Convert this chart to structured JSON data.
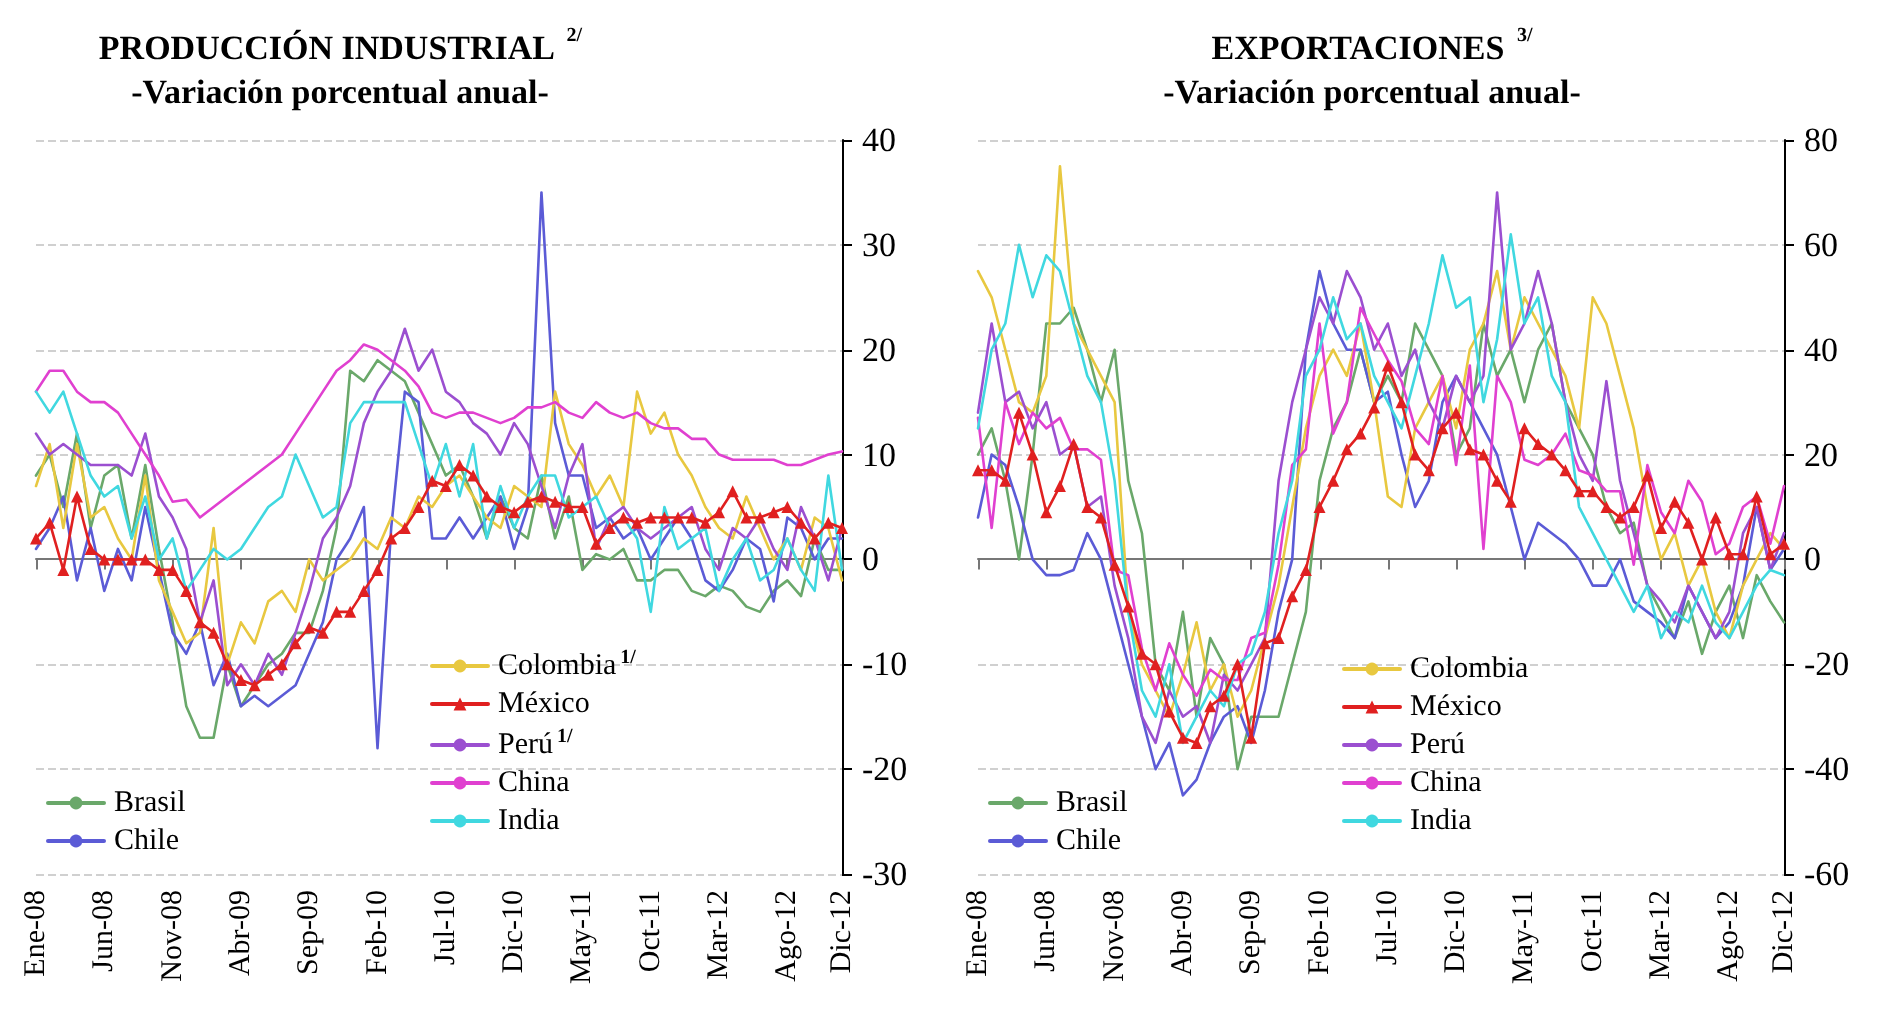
{
  "chart_data": [
    {
      "type": "line",
      "title": "PRODUCCIÓN INDUSTRIAL $^{2/}$",
      "subtitle": "-Variación porcentual anual-",
      "categories": [
        "Ene-08",
        null,
        null,
        null,
        null,
        "Jun-08",
        null,
        null,
        null,
        null,
        "Nov-08",
        null,
        null,
        null,
        null,
        "Abr-09",
        null,
        null,
        null,
        null,
        "Sep-09",
        null,
        null,
        null,
        null,
        "Feb-10",
        null,
        null,
        null,
        null,
        "Jul-10",
        null,
        null,
        null,
        null,
        "Dic-10",
        null,
        null,
        null,
        null,
        "May-11",
        null,
        null,
        null,
        null,
        "Oct-11",
        null,
        null,
        null,
        null,
        "Mar-12",
        null,
        null,
        null,
        null,
        "Ago-12",
        null,
        null,
        null,
        "Dic-12"
      ],
      "ylim": [
        -30,
        40
      ],
      "yticks": [
        -30,
        -20,
        -10,
        0,
        10,
        20,
        30,
        40
      ],
      "grid": "y",
      "legend": "bottom",
      "marker": "none",
      "line_style": "solid",
      "series": [
        {
          "name": "Brasil",
          "color": "#6aa86a",
          "values": [
            8,
            10,
            5,
            12,
            3,
            8,
            9,
            2,
            9,
            1,
            -6,
            -14,
            -17,
            -17,
            -10,
            -14,
            -12,
            -10,
            -9,
            -7,
            -7,
            -3,
            3,
            18,
            17,
            19,
            18,
            17,
            14,
            11,
            8,
            9,
            6,
            2,
            6,
            3,
            2,
            8,
            2,
            6,
            -1,
            0.5,
            0,
            1,
            -2,
            -2,
            -1,
            -1,
            -3,
            -3.5,
            -2.5,
            -3,
            -4.5,
            -5,
            -3,
            -2,
            -3.5,
            2,
            -1,
            -1
          ]
        },
        {
          "name": "Chile",
          "color": "#5b5bd6",
          "values": [
            1,
            3,
            6,
            -2,
            3,
            -3,
            1,
            -2,
            5,
            -1,
            -7,
            -9,
            -6,
            -12,
            -9,
            -14,
            -13,
            -14,
            -13,
            -12,
            -9,
            -6,
            0,
            2,
            5,
            -18,
            3,
            16,
            15,
            2,
            2,
            4,
            2,
            4,
            6,
            1,
            5,
            35,
            13,
            8,
            8,
            3,
            4,
            2,
            3,
            0,
            2,
            4,
            2,
            -2,
            -3,
            -1,
            2,
            1,
            -4,
            4,
            3,
            0,
            2,
            2
          ]
        },
        {
          "name": "Colombia$^{1/}$",
          "color": "#e8c840",
          "values": [
            7,
            11,
            3,
            11,
            4,
            5,
            2,
            0,
            8,
            -2,
            -5,
            -8,
            -7,
            3,
            -10,
            -6,
            -8,
            -4,
            -3,
            -5,
            0,
            -2,
            -1,
            0,
            2,
            1,
            4,
            3,
            6,
            5,
            7,
            8,
            6,
            4,
            3,
            7,
            6,
            5,
            16,
            11,
            9,
            6,
            8,
            5,
            16,
            12,
            14,
            10,
            8,
            5,
            3,
            2,
            6,
            3,
            0,
            2,
            -1,
            4,
            3,
            -2
          ]
        },
        {
          "name": "México",
          "color": "#e02020",
          "marker": "triangle",
          "values": [
            2,
            3.5,
            -1,
            6,
            1,
            0,
            0,
            0,
            0,
            -1,
            -1,
            -3,
            -6,
            -7,
            -10,
            -11.5,
            -12,
            -11,
            -10,
            -8,
            -6.5,
            -7,
            -5,
            -5,
            -3,
            -1,
            2,
            3,
            5,
            7.5,
            7,
            9,
            8,
            6,
            5,
            4.5,
            5.5,
            6,
            5.5,
            5,
            5,
            1.5,
            3,
            4,
            3.5,
            4,
            4,
            4,
            4,
            3.5,
            4.5,
            6.5,
            4,
            4,
            4.5,
            5,
            3.5,
            2,
            3.5,
            3
          ]
        },
        {
          "name": "Perú$^{1/}$",
          "color": "#9b4fd0",
          "values": [
            12,
            10,
            11,
            10,
            9,
            9,
            9,
            8,
            12,
            6,
            4,
            1,
            -6,
            -2,
            -12,
            -10,
            -12,
            -9,
            -11,
            -7,
            -3,
            2,
            4,
            7,
            13,
            16,
            18,
            22,
            18,
            20,
            16,
            15,
            13,
            12,
            10,
            13,
            11,
            7,
            3,
            8,
            11,
            1,
            4,
            5,
            3,
            2,
            3,
            4,
            5,
            1,
            -1,
            3,
            2,
            4,
            1,
            -1,
            5,
            2,
            -2,
            3
          ]
        },
        {
          "name": "China",
          "color": "#e040d0",
          "values": [
            16,
            18,
            18,
            16,
            15,
            15,
            14,
            12,
            10,
            8,
            5.5,
            5.7,
            4,
            5,
            6,
            7,
            8,
            9,
            10,
            12,
            14,
            16,
            18,
            19,
            20.5,
            20,
            19,
            18,
            16.5,
            14,
            13.5,
            14,
            14,
            13.5,
            13,
            13.5,
            14.5,
            14.5,
            15,
            14,
            13.5,
            15,
            14,
            13.5,
            14,
            13,
            12.5,
            12.5,
            11.5,
            11.5,
            10,
            9.5,
            9.5,
            9.5,
            9.5,
            9,
            9,
            9.5,
            10,
            10.3
          ]
        },
        {
          "name": "India",
          "color": "#40d8e0",
          "values": [
            16,
            14,
            16,
            12,
            8,
            6,
            7,
            2,
            6,
            0,
            2,
            -3,
            -1,
            1,
            0,
            1,
            3,
            5,
            6,
            10,
            7,
            4,
            5,
            13,
            15,
            15,
            15,
            15,
            11,
            7,
            11,
            6,
            11,
            2,
            7,
            3,
            6,
            8,
            8,
            4,
            5,
            6,
            3,
            4,
            2,
            -5,
            5,
            1,
            2,
            3,
            -3,
            0,
            2,
            -2,
            -1,
            2,
            -1,
            -3,
            8,
            -1
          ]
        }
      ]
    },
    {
      "type": "line",
      "title": "EXPORTACIONES $^{3/}$",
      "subtitle": "-Variación porcentual anual-",
      "categories": [
        "Ene-08",
        null,
        null,
        null,
        null,
        "Jun-08",
        null,
        null,
        null,
        null,
        "Nov-08",
        null,
        null,
        null,
        null,
        "Abr-09",
        null,
        null,
        null,
        null,
        "Sep-09",
        null,
        null,
        null,
        null,
        "Feb-10",
        null,
        null,
        null,
        null,
        "Jul-10",
        null,
        null,
        null,
        null,
        "Dic-10",
        null,
        null,
        null,
        null,
        "May-11",
        null,
        null,
        null,
        null,
        "Oct-11",
        null,
        null,
        null,
        null,
        "Mar-12",
        null,
        null,
        null,
        null,
        "Ago-12",
        null,
        null,
        null,
        "Dic-12"
      ],
      "ylim": [
        -60,
        80
      ],
      "yticks": [
        -60,
        -40,
        -20,
        0,
        20,
        40,
        60,
        80
      ],
      "grid": "y",
      "legend": "bottom",
      "marker": "none",
      "line_style": "solid",
      "series": [
        {
          "name": "Brasil",
          "color": "#6aa86a",
          "values": [
            20,
            25,
            15,
            0,
            20,
            45,
            45,
            48,
            40,
            30,
            40,
            15,
            5,
            -20,
            -25,
            -10,
            -30,
            -15,
            -20,
            -40,
            -30,
            -30,
            -30,
            -20,
            -10,
            15,
            25,
            30,
            40,
            30,
            35,
            30,
            45,
            40,
            35,
            20,
            25,
            45,
            35,
            40,
            30,
            40,
            45,
            30,
            25,
            20,
            10,
            5,
            7,
            -5,
            -10,
            -15,
            -8,
            -18,
            -10,
            -5,
            -15,
            -3,
            -8,
            -12
          ]
        },
        {
          "name": "Chile",
          "color": "#5b5bd6",
          "values": [
            8,
            20,
            18,
            10,
            0,
            -3,
            -3,
            -2,
            5,
            0,
            -10,
            -20,
            -30,
            -40,
            -35,
            -45,
            -42,
            -35,
            -30,
            -28,
            -35,
            -25,
            -10,
            0,
            40,
            55,
            45,
            40,
            40,
            30,
            32,
            20,
            10,
            15,
            30,
            35,
            30,
            25,
            20,
            10,
            0,
            7,
            5,
            3,
            0,
            -5,
            -5,
            0,
            -8,
            -10,
            -12,
            -15,
            -5,
            -10,
            -15,
            -12,
            -5,
            10,
            -2,
            2
          ]
        },
        {
          "name": "Colombia",
          "color": "#e8c840",
          "values": [
            55,
            50,
            40,
            30,
            28,
            35,
            75,
            45,
            40,
            35,
            30,
            -10,
            -20,
            -25,
            -30,
            -22,
            -12,
            -25,
            -20,
            -30,
            -25,
            -15,
            -5,
            10,
            25,
            35,
            40,
            35,
            45,
            30,
            12,
            10,
            25,
            30,
            35,
            25,
            40,
            45,
            55,
            40,
            50,
            45,
            40,
            35,
            25,
            50,
            45,
            35,
            25,
            10,
            0,
            5,
            -5,
            0,
            -10,
            -15,
            -5,
            0,
            5,
            2
          ]
        },
        {
          "name": "México",
          "color": "#e02020",
          "marker": "triangle",
          "values": [
            17,
            17,
            15,
            28,
            20,
            9,
            14,
            22,
            10,
            8,
            -1,
            -9,
            -18,
            -20,
            -29,
            -34,
            -35,
            -28,
            -26,
            -20,
            -34,
            -16,
            -15,
            -7,
            -2,
            10,
            15,
            21,
            24,
            29,
            37,
            30,
            20,
            17,
            25,
            28,
            21,
            20,
            15,
            11,
            25,
            22,
            20,
            17,
            13,
            13,
            10,
            8,
            10,
            16,
            6,
            11,
            7,
            0,
            8,
            1,
            1,
            12,
            1,
            3
          ]
        },
        {
          "name": "Perú",
          "color": "#9b4fd0",
          "values": [
            28,
            45,
            30,
            32,
            25,
            30,
            20,
            22,
            10,
            12,
            -5,
            -15,
            -30,
            -35,
            -25,
            -30,
            -28,
            -35,
            -22,
            -25,
            -20,
            -15,
            15,
            30,
            40,
            50,
            45,
            55,
            50,
            40,
            45,
            35,
            40,
            30,
            25,
            35,
            30,
            35,
            70,
            40,
            45,
            55,
            45,
            30,
            20,
            15,
            34,
            15,
            5,
            -5,
            -8,
            -12,
            -5,
            -10,
            -15,
            -10,
            5,
            10,
            -2,
            5
          ]
        },
        {
          "name": "China",
          "color": "#e040d0",
          "values": [
            27,
            6,
            30,
            22,
            28,
            25,
            27,
            21,
            21,
            19,
            -2,
            -3,
            -17,
            -25,
            -16,
            -22,
            -26,
            -21,
            -23,
            -23,
            -15,
            -14,
            -1,
            18,
            21,
            45,
            24,
            30,
            48,
            43,
            38,
            34,
            25,
            22,
            35,
            18,
            37,
            2,
            35,
            30,
            19,
            18,
            20,
            24,
            17,
            16,
            13,
            13,
            -1,
            18,
            9,
            5,
            15,
            11,
            1,
            3,
            10,
            12,
            3,
            14
          ]
        },
        {
          "name": "India",
          "color": "#40d8e0",
          "values": [
            25,
            40,
            45,
            60,
            50,
            58,
            55,
            45,
            35,
            30,
            15,
            -10,
            -25,
            -30,
            -20,
            -35,
            -30,
            -25,
            -28,
            -20,
            -18,
            -10,
            5,
            15,
            35,
            40,
            50,
            42,
            45,
            35,
            30,
            25,
            35,
            45,
            58,
            48,
            50,
            30,
            42,
            62,
            45,
            50,
            35,
            30,
            10,
            5,
            0,
            -5,
            -10,
            -5,
            -15,
            -10,
            -12,
            -5,
            -12,
            -15,
            -10,
            -5,
            -2,
            -3
          ]
        }
      ]
    }
  ]
}
